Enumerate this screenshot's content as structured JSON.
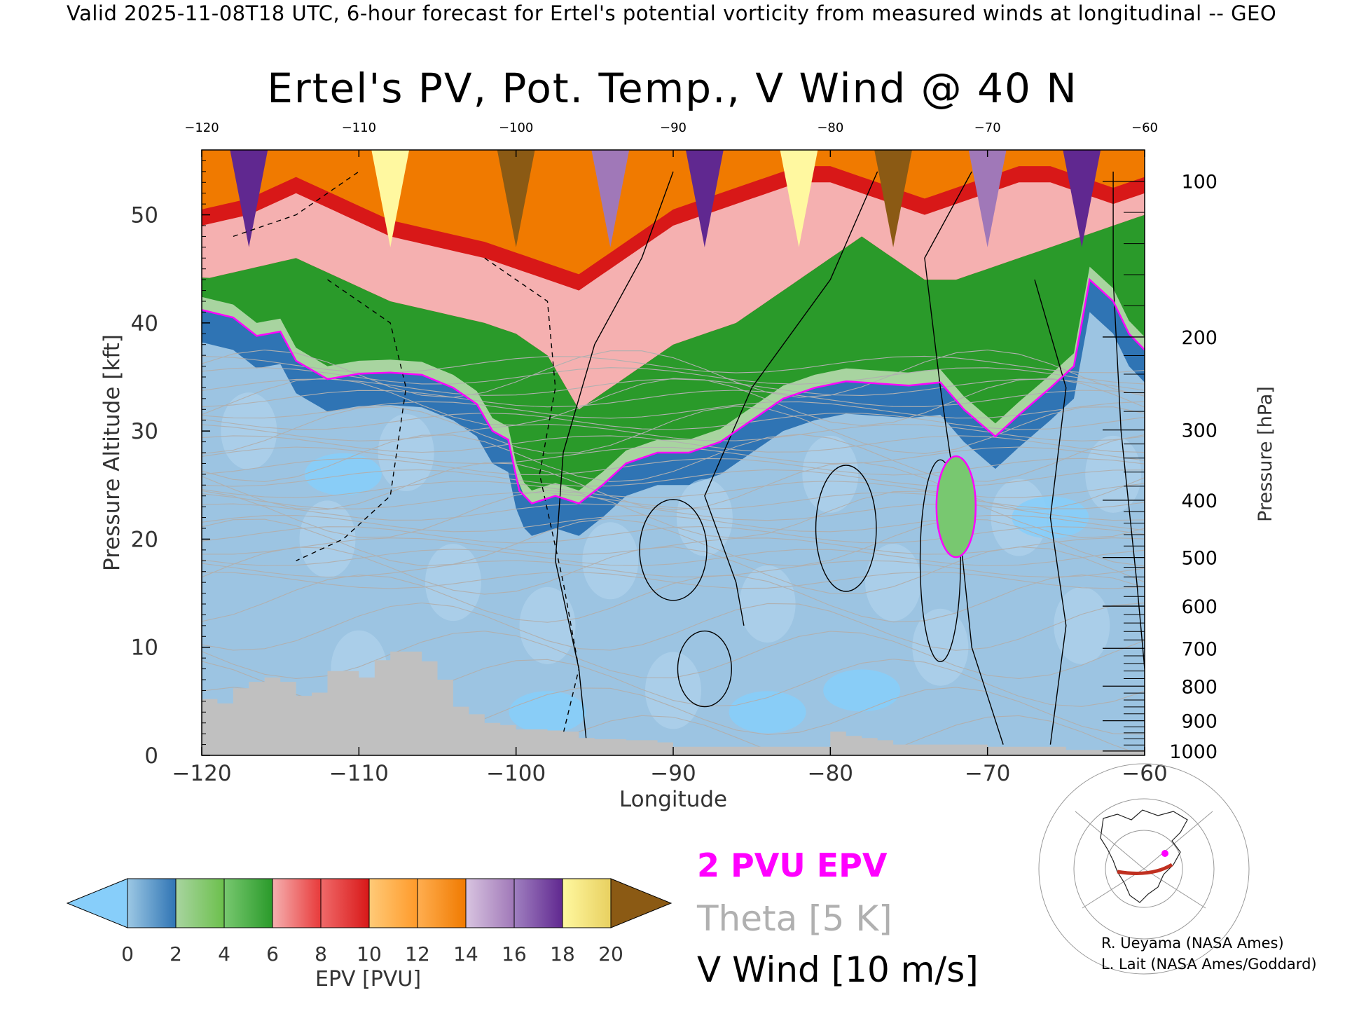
{
  "header": "Valid 2025-11-08T18 UTC, 6-hour forecast for Ertel's potential vorticity from measured winds at longitudinal -- GEO",
  "title": "Ertel's PV, Pot. Temp., V Wind @ 40 N",
  "chart_data": {
    "type": "heatmap",
    "title": "Ertel's PV, Pot. Temp., V Wind @ 40 N",
    "xlabel": "Longitude",
    "ylabel": "Pressure Altitude [kft]",
    "y2label": "Pressure [hPa]",
    "xlim": [
      -120,
      -60
    ],
    "ylim": [
      0,
      56
    ],
    "x_ticks": [
      -120,
      -110,
      -100,
      -90,
      -80,
      -70,
      -60
    ],
    "x_ticks_top": [
      -120,
      -110,
      -100,
      -90,
      -80,
      -70,
      -60
    ],
    "y_ticks": [
      0,
      10,
      20,
      30,
      40,
      50
    ],
    "pressure_ticks": [
      {
        "hPa": 100,
        "kft": 53.1
      },
      {
        "hPa": 200,
        "kft": 38.7
      },
      {
        "hPa": 300,
        "kft": 30.1
      },
      {
        "hPa": 400,
        "kft": 23.6
      },
      {
        "hPa": 500,
        "kft": 18.3
      },
      {
        "hPa": 600,
        "kft": 13.8
      },
      {
        "hPa": 700,
        "kft": 9.9
      },
      {
        "hPa": 800,
        "kft": 6.4
      },
      {
        "hPa": 900,
        "kft": 3.2
      },
      {
        "hPa": 1000,
        "kft": 0.4
      }
    ],
    "colorbar": {
      "label": "EPV [PVU]",
      "ticks": [
        0,
        2,
        4,
        6,
        8,
        10,
        12,
        14,
        16,
        18,
        20
      ],
      "extend": "both",
      "under_color": "#87cefa",
      "over_color": "#8b5a14",
      "segments": [
        [
          "#9cc8e4",
          "#2f74b4"
        ],
        [
          "#a8d4a0",
          "#6cc04c"
        ],
        [
          "#78c870",
          "#2a9a2a"
        ],
        [
          "#f5b0b0",
          "#e83a3a"
        ],
        [
          "#f06a6a",
          "#d81818"
        ],
        [
          "#ffca78",
          "#ff9a2a"
        ],
        [
          "#ffae50",
          "#f07a00"
        ],
        [
          "#d8c4e0",
          "#a078b8"
        ],
        [
          "#a080c0",
          "#602890"
        ],
        [
          "#fff8a0",
          "#e8d060"
        ],
        [
          "#d8a858",
          "#8b5a14"
        ]
      ]
    },
    "tropopause_2pvu": [
      [
        -120,
        41.2
      ],
      [
        -118,
        40.5
      ],
      [
        -116.5,
        38.8
      ],
      [
        -115,
        39.2
      ],
      [
        -114,
        36.5
      ],
      [
        -112,
        34.8
      ],
      [
        -110,
        35.3
      ],
      [
        -108,
        35.4
      ],
      [
        -106,
        35.2
      ],
      [
        -104,
        34.0
      ],
      [
        -102.5,
        32.5
      ],
      [
        -101.5,
        30.0
      ],
      [
        -100.5,
        29.2
      ],
      [
        -99.8,
        24.5
      ],
      [
        -99,
        23.3
      ],
      [
        -97.5,
        24.0
      ],
      [
        -96,
        23.3
      ],
      [
        -94.5,
        25.0
      ],
      [
        -93,
        27.0
      ],
      [
        -91,
        28.0
      ],
      [
        -89,
        28.0
      ],
      [
        -87,
        29.0
      ],
      [
        -85,
        31.0
      ],
      [
        -83,
        33.0
      ],
      [
        -81,
        34.0
      ],
      [
        -79,
        34.6
      ],
      [
        -77,
        34.4
      ],
      [
        -75,
        34.2
      ],
      [
        -73,
        34.5
      ],
      [
        -71.5,
        32.0
      ],
      [
        -69.5,
        29.5
      ],
      [
        -68,
        31.5
      ],
      [
        -66,
        34.0
      ],
      [
        -64.5,
        36.0
      ],
      [
        -63.5,
        44.0
      ],
      [
        -62,
        42.0
      ],
      [
        -61,
        39.0
      ],
      [
        -60,
        37.5
      ]
    ],
    "epv_band_tops": {
      "longitude": [
        -120,
        -117,
        -114,
        -111,
        -108,
        -105,
        -102,
        -100,
        -98,
        -96,
        -94,
        -92,
        -90,
        -88,
        -86,
        -84,
        -82,
        -80,
        -78,
        -76,
        -74,
        -72,
        -70,
        -68,
        -66,
        -64,
        -62,
        -60
      ],
      "green_top": [
        44,
        45,
        46,
        44,
        42,
        41,
        40,
        39,
        37,
        32,
        34,
        36,
        38,
        39,
        40,
        42,
        44,
        46,
        48,
        46,
        44,
        44,
        45,
        46,
        47,
        48,
        49,
        50
      ],
      "red_top": [
        49,
        50,
        52,
        50,
        48,
        47,
        46,
        45,
        44,
        43,
        45,
        47,
        49,
        50,
        51,
        52,
        53,
        53,
        52,
        51,
        50,
        51,
        52,
        53,
        53,
        52,
        51,
        52
      ]
    },
    "theta_contour_interval_K": 5,
    "v_wind_contour_interval_ms": 10,
    "terrain_kft": {
      "longitude": [
        -120,
        -119,
        -118,
        -117,
        -116,
        -115,
        -114,
        -113,
        -112,
        -111,
        -110,
        -109,
        -108,
        -107,
        -106,
        -105,
        -104,
        -103,
        -102,
        -101,
        -100,
        -99,
        -98,
        -97,
        -96,
        -95,
        -94,
        -93,
        -92,
        -91,
        -90,
        -80,
        -79,
        -78,
        -77,
        -76,
        -70,
        -65
      ],
      "height": [
        5.2,
        4.8,
        6.2,
        6.8,
        7.2,
        6.8,
        5.5,
        5.8,
        7.8,
        7.8,
        7.2,
        8.8,
        9.6,
        9.6,
        8.7,
        7.0,
        4.5,
        3.8,
        3.0,
        2.8,
        2.4,
        2.4,
        2.3,
        2.2,
        1.6,
        1.5,
        1.5,
        1.4,
        1.4,
        1.2,
        0.8,
        2.2,
        1.8,
        1.6,
        1.4,
        1.0,
        0.8,
        0.5
      ]
    }
  },
  "legend": {
    "epv_line": "2 PVU EPV",
    "theta": "Theta [5 K]",
    "wind": "V Wind [10 m/s]"
  },
  "colors": {
    "pv_2pvu": "#ff00ff",
    "theta": "#b0b0b0",
    "wind": "#000000",
    "terrain": "#c0c0c0"
  },
  "credits": [
    "R. Ueyama (NASA Ames)",
    "L. Lait (NASA Ames/Goddard)"
  ]
}
